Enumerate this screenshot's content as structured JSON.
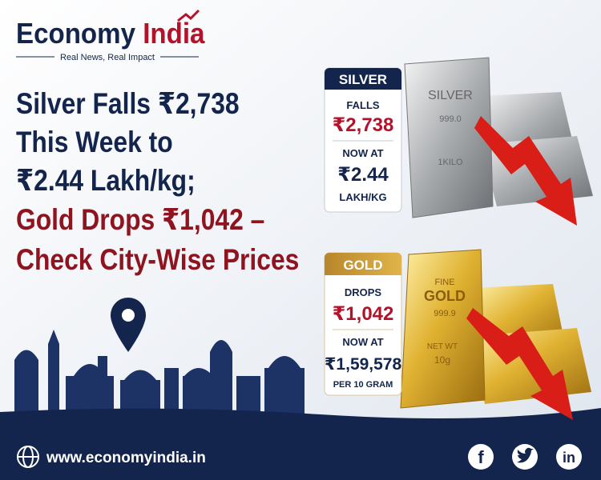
{
  "header": {
    "brand": {
      "first": "Economy",
      "second": "India"
    },
    "tagline": "Real News, Real Impact"
  },
  "headline": {
    "lines": [
      "Silver Falls ₹2,738",
      "This Week to",
      "₹2.44 Lakh/kg;",
      "Gold Drops ₹1,042 –",
      "Check City-Wise Prices"
    ]
  },
  "silver_card": {
    "label": "SILVER",
    "change_label": "FALLS",
    "change": "₹2,738",
    "now_label": "NOW AT",
    "price": "₹2.44",
    "unit": "LAKH/KG"
  },
  "silver_bar": {
    "lines": [
      "SILVER",
      "999.0",
      "1KILO"
    ]
  },
  "gold_card": {
    "label": "GOLD",
    "change_label": "DROPS",
    "change": "₹1,042",
    "now_label": "NOW AT",
    "price": "₹1,59,578",
    "unit": "PER 10 GRAM"
  },
  "gold_bar": {
    "lines": [
      "FINE",
      "GOLD",
      "999.9",
      "NET WT",
      "10g"
    ]
  },
  "footer": {
    "website": "www.economyindia.in",
    "social": [
      "f",
      "in"
    ]
  }
}
